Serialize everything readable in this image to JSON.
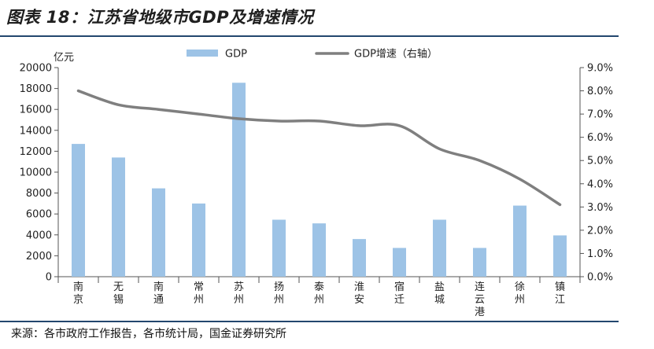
{
  "header": {
    "title": "图表 18：江苏省地级市GDP及增速情况"
  },
  "footer": {
    "source": "来源：各市政府工作报告，各市统计局，国金证券研究所"
  },
  "chart_data": {
    "type": "bar",
    "categories": [
      "南京",
      "无锡",
      "南通",
      "常州",
      "苏州",
      "扬州",
      "泰州",
      "淮安",
      "宿迁",
      "盐城",
      "连云港",
      "徐州",
      "镇江"
    ],
    "unit_left": "亿元",
    "series": [
      {
        "name": "GDP",
        "type": "bar",
        "axis": "left",
        "color": "#9dc3e6",
        "values": [
          12700,
          11400,
          8450,
          7000,
          18550,
          5450,
          5100,
          3600,
          2750,
          5450,
          2750,
          6800,
          3950
        ]
      },
      {
        "name": "GDP增速（右轴）",
        "type": "line",
        "axis": "right",
        "color": "#7f7f7f",
        "values": [
          8.0,
          7.4,
          7.2,
          7.0,
          6.8,
          6.7,
          6.7,
          6.5,
          6.5,
          5.5,
          5.0,
          4.2,
          3.1
        ]
      }
    ],
    "y_left": {
      "min": 0,
      "max": 20000,
      "ticks": [
        "0",
        "2000",
        "4000",
        "6000",
        "8000",
        "10000",
        "12000",
        "14000",
        "16000",
        "18000",
        "20000"
      ]
    },
    "y_right": {
      "min": 0,
      "max": 9,
      "ticks": [
        "0.0%",
        "1.0%",
        "2.0%",
        "3.0%",
        "4.0%",
        "5.0%",
        "6.0%",
        "7.0%",
        "8.0%",
        "9.0%"
      ]
    },
    "legend_position": "top",
    "grid": false
  }
}
